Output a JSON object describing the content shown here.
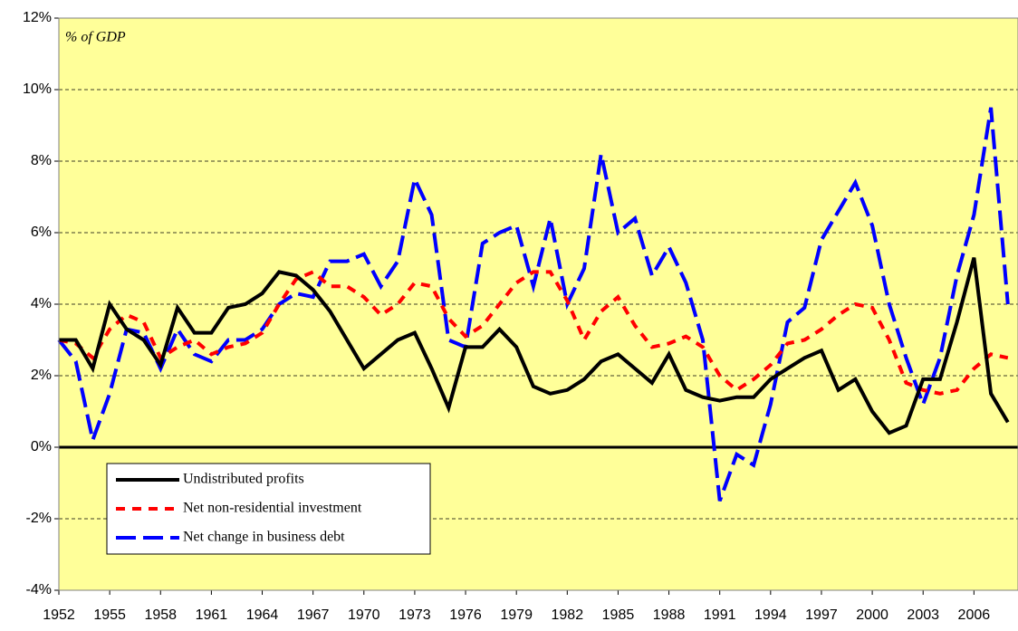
{
  "chart_data": {
    "type": "line",
    "annotation": "% of GDP",
    "x": [
      1952,
      1953,
      1954,
      1955,
      1956,
      1957,
      1958,
      1959,
      1960,
      1961,
      1962,
      1963,
      1964,
      1965,
      1966,
      1967,
      1968,
      1969,
      1970,
      1971,
      1972,
      1973,
      1974,
      1975,
      1976,
      1977,
      1978,
      1979,
      1980,
      1981,
      1982,
      1983,
      1984,
      1985,
      1986,
      1987,
      1988,
      1989,
      1990,
      1991,
      1992,
      1993,
      1994,
      1995,
      1996,
      1997,
      1998,
      1999,
      2000,
      2001,
      2002,
      2003,
      2004,
      2005,
      2006,
      2007,
      2008
    ],
    "series": [
      {
        "name": "Undistributed profits",
        "color": "#000000",
        "line_style": "solid",
        "values": [
          3.0,
          3.0,
          2.2,
          4.0,
          3.3,
          3.0,
          2.3,
          3.9,
          3.2,
          3.2,
          3.9,
          4.0,
          4.3,
          4.9,
          4.8,
          4.4,
          3.8,
          3.0,
          2.2,
          2.6,
          3.0,
          3.2,
          2.2,
          1.1,
          2.8,
          2.8,
          3.3,
          2.8,
          1.7,
          1.5,
          1.6,
          1.9,
          2.4,
          2.6,
          2.2,
          1.8,
          2.6,
          1.6,
          1.4,
          1.3,
          1.4,
          1.4,
          1.9,
          2.2,
          2.5,
          2.7,
          1.6,
          1.9,
          1.0,
          0.4,
          0.6,
          1.9,
          1.9,
          3.5,
          5.3,
          1.5,
          0.7
        ]
      },
      {
        "name": "Net non-residential investment",
        "color": "#ff0000",
        "line_style": "dashed",
        "values": [
          3.0,
          2.9,
          2.5,
          3.3,
          3.7,
          3.5,
          2.5,
          2.8,
          3.0,
          2.6,
          2.8,
          2.9,
          3.2,
          4.0,
          4.7,
          4.9,
          4.5,
          4.5,
          4.2,
          3.7,
          4.0,
          4.6,
          4.5,
          3.6,
          3.1,
          3.4,
          4.0,
          4.6,
          4.9,
          4.9,
          4.1,
          3.0,
          3.8,
          4.2,
          3.4,
          2.8,
          2.9,
          3.1,
          2.8,
          2.0,
          1.6,
          1.9,
          2.3,
          2.9,
          3.0,
          3.3,
          3.7,
          4.0,
          3.9,
          3.0,
          1.8,
          1.6,
          1.5,
          1.6,
          2.2,
          2.6,
          2.5
        ]
      },
      {
        "name": "Net change in business debt",
        "color": "#0000ff",
        "line_style": "long-dashed",
        "values": [
          3.0,
          2.4,
          0.2,
          1.5,
          3.3,
          3.2,
          2.2,
          3.3,
          2.6,
          2.4,
          3.0,
          3.0,
          3.3,
          4.0,
          4.3,
          4.2,
          5.2,
          5.2,
          5.4,
          4.5,
          5.2,
          7.5,
          6.5,
          3.0,
          2.8,
          5.7,
          6.0,
          6.2,
          4.5,
          6.4,
          4.0,
          5.0,
          8.2,
          6.0,
          6.4,
          4.8,
          5.6,
          4.6,
          3.0,
          -1.5,
          -0.2,
          -0.5,
          1.2,
          3.5,
          3.9,
          5.8,
          6.6,
          7.4,
          6.2,
          4.0,
          2.5,
          1.2,
          2.5,
          4.8,
          6.5,
          9.5,
          4.0
        ]
      }
    ],
    "xlim": [
      1952,
      2008.6
    ],
    "xticks": [
      1952,
      1955,
      1958,
      1961,
      1964,
      1967,
      1970,
      1973,
      1976,
      1979,
      1982,
      1985,
      1988,
      1991,
      1994,
      1997,
      2000,
      2003,
      2006
    ],
    "ylim": [
      -4,
      12
    ],
    "yticks": [
      {
        "value": -4,
        "label": "-4%"
      },
      {
        "value": -2,
        "label": "-2%"
      },
      {
        "value": 0,
        "label": "0%"
      },
      {
        "value": 2,
        "label": "2%"
      },
      {
        "value": 4,
        "label": "4%"
      },
      {
        "value": 6,
        "label": "6%"
      },
      {
        "value": 8,
        "label": "8%"
      },
      {
        "value": 10,
        "label": "10%"
      },
      {
        "value": 12,
        "label": "12%"
      }
    ],
    "grid": true,
    "background": "#ffff99",
    "legend": "lower left"
  }
}
